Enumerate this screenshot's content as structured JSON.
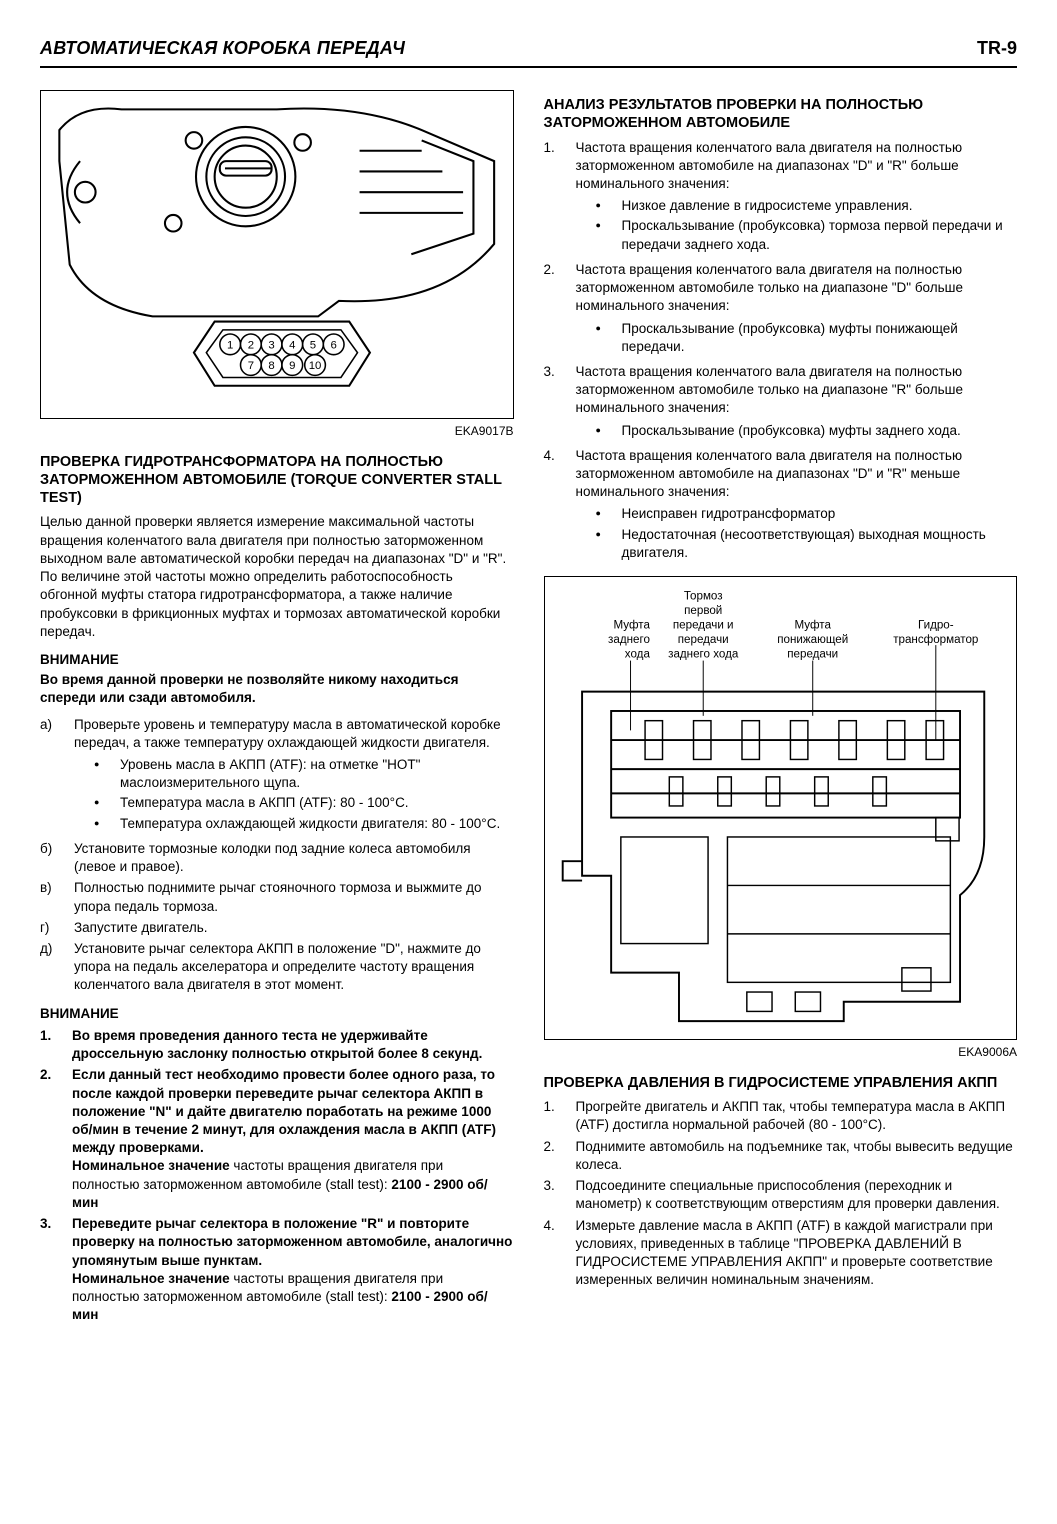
{
  "header": {
    "title": "АВТОМАТИЧЕСКАЯ КОРОБКА ПЕРЕДАЧ",
    "pageno": "TR-9"
  },
  "fig1": {
    "code": "EKA9017B",
    "pins": [
      "1",
      "2",
      "3",
      "4",
      "5",
      "6",
      "7",
      "8",
      "9",
      "10"
    ]
  },
  "left": {
    "h1": "ПРОВЕРКА ГИДРОТРАНСФОРМАТОРА НА ПОЛНОСТЬЮ ЗАТОРМОЖЕННОМ АВТОМОБИЛЕ (TORQUE CONVERTER STALL TEST)",
    "p1": "Целью данной проверки является измерение максимальной частоты вращения коленчатого вала двигателя при полностью заторможенном выходном вале автоматической коробки передач на диапазонах \"D\" и \"R\". По величине этой частоты можно определить работоспособность обгонной муфты статора гидротрансформатора, а также наличие пробуксовки в фрикционных муфтах и тормозах автоматической коробки передач.",
    "caution1_label": "ВНИМАНИЕ",
    "caution1_text": "Во время данной проверки не позволяйте никому находиться спереди или сзади автомобиля.",
    "steps_a": [
      {
        "mk": "а)",
        "txt": "Проверьте уровень и температуру масла в автоматической коробке передач, а также температуру охлаждающей жидкости двигателя.",
        "bullets": [
          "Уровень масла в АКПП (ATF): на отметке \"HOT\" маслоизмерительного щупа.",
          "Температура масла в АКПП (ATF): 80 - 100°C.",
          "Температура охлаждающей жидкости двигателя: 80 - 100°C."
        ]
      },
      {
        "mk": "б)",
        "txt": "Установите тормозные колодки под задние колеса автомобиля (левое и правое)."
      },
      {
        "mk": "в)",
        "txt": "Полностью поднимите рычаг стояночного тормоза и выжмите до упора педаль тормоза."
      },
      {
        "mk": "г)",
        "txt": "Запустите двигатель."
      },
      {
        "mk": "д)",
        "txt": "Установите рычаг селектора АКПП в положение \"D\", нажмите до упора на педаль акселератора и определите частоту вращения коленчатого вала двигателя в этот момент."
      }
    ],
    "caution2_label": "ВНИМАНИЕ",
    "caution2": [
      {
        "mk": "1.",
        "bold": "Во время проведения данного теста не удерживайте дроссельную заслонку полностью открытой более 8 секунд."
      },
      {
        "mk": "2.",
        "bold": "Если данный тест необходимо провести более одного раза, то после каждой проверки переведите рычаг селектора АКПП в положение \"N\" и дайте двигателю поработать на режиме 1000 об/мин в течение 2 минут, для охлаждения масла в АКПП (ATF) между проверками.",
        "tail_bold1": "Номинальное значение ",
        "tail_plain": "частоты вращения двигателя при полностью заторможенном автомобиле (stall test): ",
        "tail_bold2": "2100 - 2900 об/мин"
      },
      {
        "mk": "3.",
        "bold": "Переведите рычаг селектора в положение \"R\" и повторите проверку на полностью заторможенном автомобиле, аналогично упомянутым выше пунктам.",
        "tail_bold1": "Номинальное значение ",
        "tail_plain": "частоты вращения двигателя при полностью заторможенном автомобиле (stall test): ",
        "tail_bold2": "2100 - 2900 об/мин"
      }
    ]
  },
  "right": {
    "h1": "АНАЛИЗ РЕЗУЛЬТАТОВ ПРОВЕРКИ НА ПОЛНОСТЬЮ ЗАТОРМОЖЕННОМ АВТОМОБИЛЕ",
    "items": [
      {
        "mk": "1.",
        "txt": "Частота вращения коленчатого вала двигателя на полностью заторможенном автомобиле на диапазонах \"D\" и \"R\" больше номинального значения:",
        "bullets": [
          "Низкое давление в гидросистеме управления.",
          "Проскальзывание (пробуксовка) тормоза первой передачи и передачи заднего хода."
        ]
      },
      {
        "mk": "2.",
        "txt": "Частота вращения коленчатого вала двигателя на полностью заторможенном автомобиле только на диапазоне \"D\" больше номинального значения:",
        "bullets": [
          "Проскальзывание (пробуксовка) муфты понижающей передачи."
        ]
      },
      {
        "mk": "3.",
        "txt": "Частота вращения коленчатого вала двигателя на полностью заторможенном автомобиле только на диапазоне \"R\" больше номинального значения:",
        "bullets": [
          "Проскальзывание (пробуксовка) муфты заднего хода."
        ]
      },
      {
        "mk": "4.",
        "txt": "Частота вращения коленчатого вала двигателя на полностью заторможенном автомобиле на диапазонах \"D\" и \"R\" меньше номинального значения:",
        "bullets": [
          "Неисправен гидротрансформатор",
          "Недостаточная (несоответствующая) выходная мощность двигателя."
        ]
      }
    ],
    "fig2": {
      "code": "EKA9006A",
      "labels": {
        "l1a": "Муфта",
        "l1b": "заднего",
        "l1c": "хода",
        "l2a": "Тормоз",
        "l2b": "первой",
        "l2c": "передачи и",
        "l2d": "передачи",
        "l2e": "заднего хода",
        "l3a": "Муфта",
        "l3b": "понижающей",
        "l3c": "передачи",
        "l4a": "Гидро-",
        "l4b": "трансформатор"
      }
    },
    "h2": "ПРОВЕРКА ДАВЛЕНИЯ В ГИДРОСИСТЕМЕ УПРАВЛЕНИЯ АКПП",
    "steps2": [
      {
        "mk": "1.",
        "txt": "Прогрейте двигатель и АКПП так, чтобы температура масла в АКПП (ATF) достигла нормальной рабочей (80 - 100°C)."
      },
      {
        "mk": "2.",
        "txt": "Поднимите автомобиль на подъемнике так, чтобы вывесить ведущие колеса."
      },
      {
        "mk": "3.",
        "txt": "Подсоедините специальные приспособления (переходник и манометр) к соответствующим отверстиям для проверки давления."
      },
      {
        "mk": "4.",
        "txt": "Измерьте давление масла в АКПП (ATF) в каждой магистрали при условиях, приведенных в таблице \"ПРОВЕРКА ДАВЛЕНИЙ В ГИДРОСИСТЕМЕ УПРАВЛЕНИЯ АКПП\" и проверьте соответствие измеренных величин номинальным значениям."
      }
    ]
  }
}
